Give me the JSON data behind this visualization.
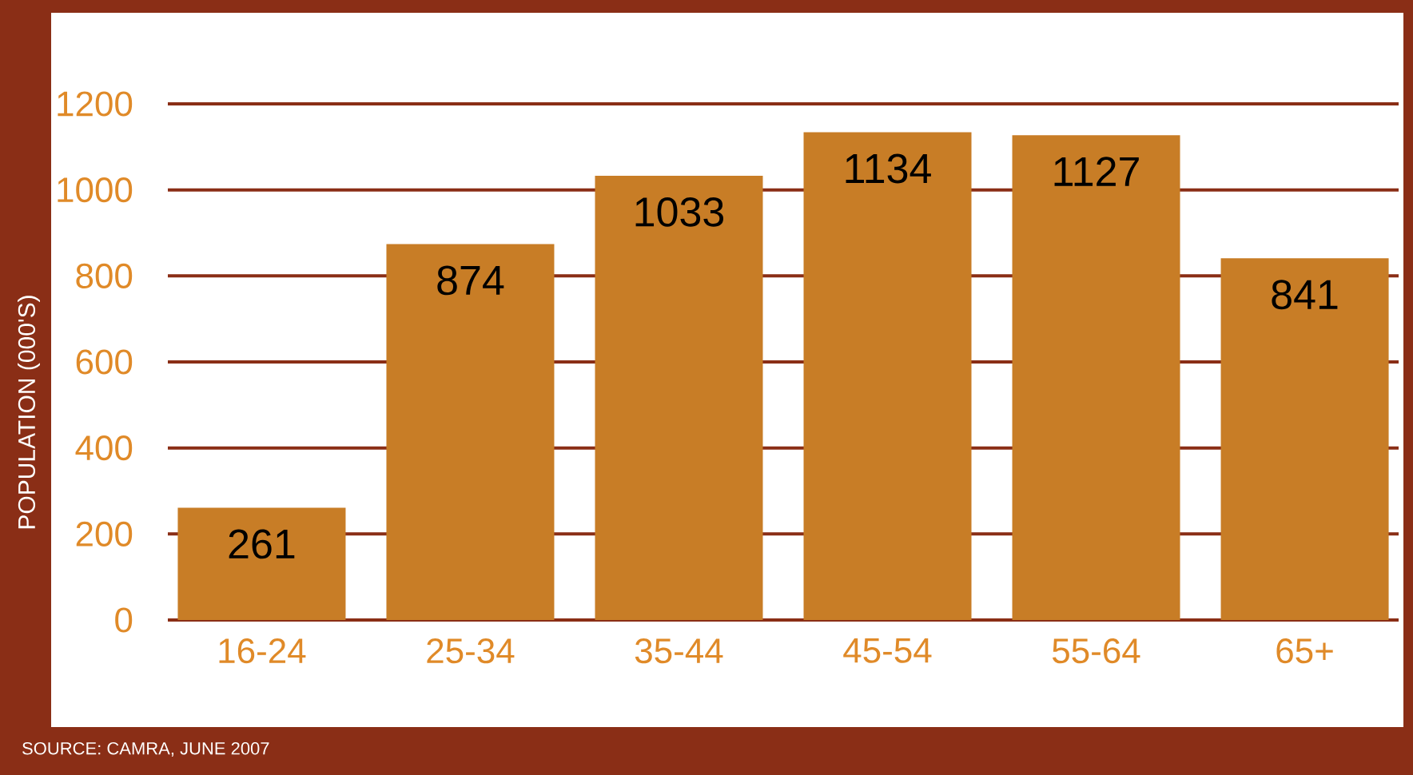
{
  "chart_data": {
    "type": "bar",
    "ylabel": "POPULATION (000'S)",
    "categories": [
      "16-24",
      "25-34",
      "35-44",
      "45-54",
      "55-64",
      "65+"
    ],
    "values": [
      261,
      874,
      1033,
      1134,
      1127,
      841
    ],
    "color": "#c87d26",
    "ylim": [
      0,
      1200
    ],
    "yticks": [
      0,
      200,
      400,
      600,
      800,
      1000,
      1200
    ],
    "grid": "y",
    "data_labels": true,
    "annotations": [
      "SOURCE: CAMRA, JUNE 2007"
    ]
  }
}
